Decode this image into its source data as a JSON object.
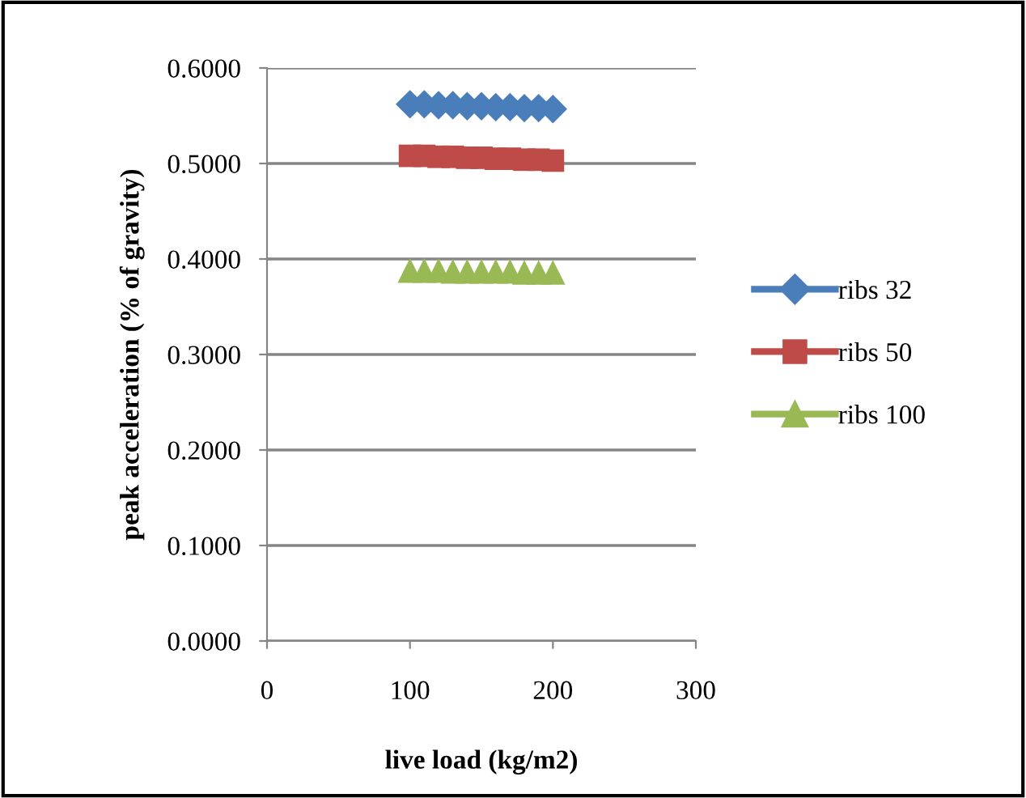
{
  "chart_data": {
    "type": "scatter",
    "xlabel": "live load (kg/m2)",
    "ylabel": "peak acceleration (% of gravity)",
    "x": [
      100,
      110,
      120,
      130,
      140,
      150,
      160,
      170,
      180,
      190,
      200
    ],
    "series": [
      {
        "name": "ribs 32",
        "color": "#4a7ebb",
        "marker": "diamond",
        "values": [
          0.562,
          0.562,
          0.561,
          0.561,
          0.56,
          0.56,
          0.559,
          0.559,
          0.558,
          0.558,
          0.557
        ]
      },
      {
        "name": "ribs 50",
        "color": "#be4b48",
        "marker": "square",
        "values": [
          0.508,
          0.508,
          0.507,
          0.507,
          0.506,
          0.506,
          0.505,
          0.505,
          0.504,
          0.504,
          0.503
        ]
      },
      {
        "name": "ribs 100",
        "color": "#98b954",
        "marker": "triangle",
        "values": [
          0.388,
          0.388,
          0.388,
          0.387,
          0.387,
          0.387,
          0.387,
          0.387,
          0.386,
          0.386,
          0.386
        ]
      }
    ],
    "xlim": [
      0,
      300
    ],
    "xticks": [
      0,
      100,
      200,
      300
    ],
    "ylim": [
      0,
      0.6
    ],
    "yticks": [
      {
        "value": 0,
        "label": "0.0000"
      },
      {
        "value": 0.1,
        "label": "0.1000"
      },
      {
        "value": 0.2,
        "label": "0.2000"
      },
      {
        "value": 0.3,
        "label": "0.3000"
      },
      {
        "value": 0.4,
        "label": "0.4000"
      },
      {
        "value": 0.5,
        "label": "0.5000"
      },
      {
        "value": 0.6,
        "label": "0.6000"
      }
    ],
    "grid": "y",
    "legend": "right",
    "line_style": "solid"
  }
}
